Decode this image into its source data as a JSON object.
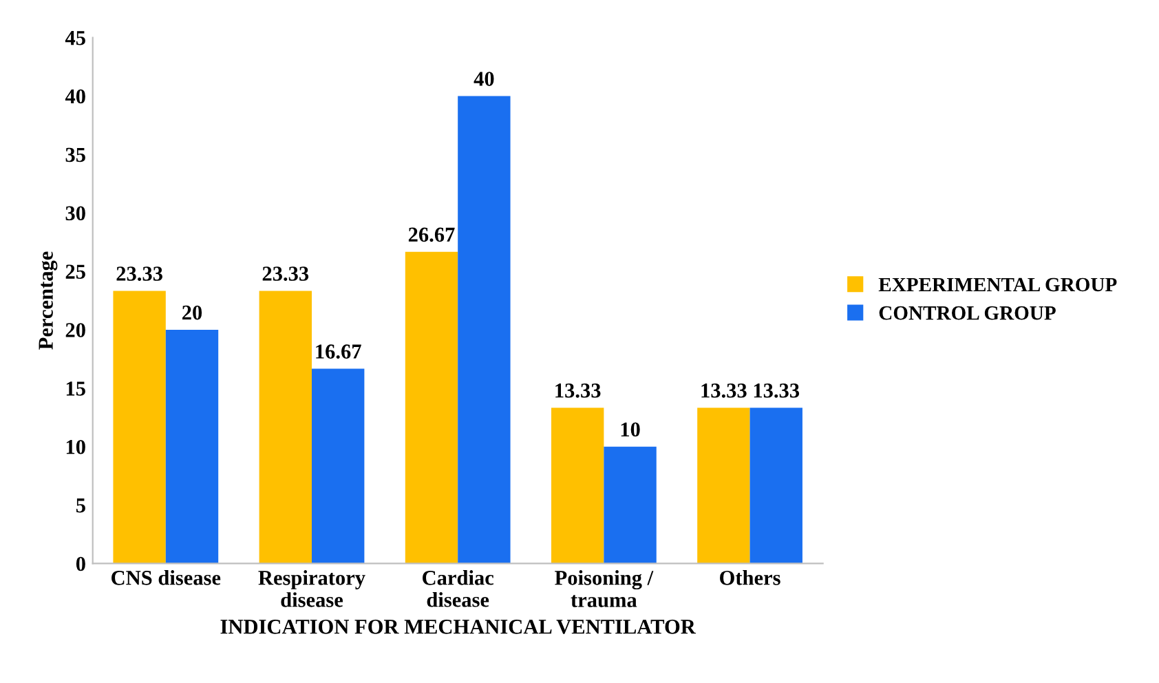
{
  "chart_data": {
    "type": "bar",
    "categories": [
      "CNS disease",
      "Respiratory\ndisease",
      "Cardiac\ndisease",
      "Poisoning /\ntrauma",
      "Others"
    ],
    "series": [
      {
        "name": "EXPERIMENTAL GROUP",
        "color": "#ffc000",
        "values": [
          23.33,
          23.33,
          26.67,
          13.33,
          13.33
        ]
      },
      {
        "name": "CONTROL GROUP",
        "color": "#1a6ff0",
        "values": [
          20,
          16.67,
          40,
          10,
          13.33
        ]
      }
    ],
    "xlabel": "INDICATION FOR MECHANICAL VENTILATOR",
    "ylabel": "Percentage",
    "ylim": [
      0,
      45
    ],
    "yticks": [
      0,
      5,
      10,
      15,
      20,
      25,
      30,
      35,
      40,
      45
    ],
    "data_labels": true,
    "legend": "right",
    "grid": false
  }
}
